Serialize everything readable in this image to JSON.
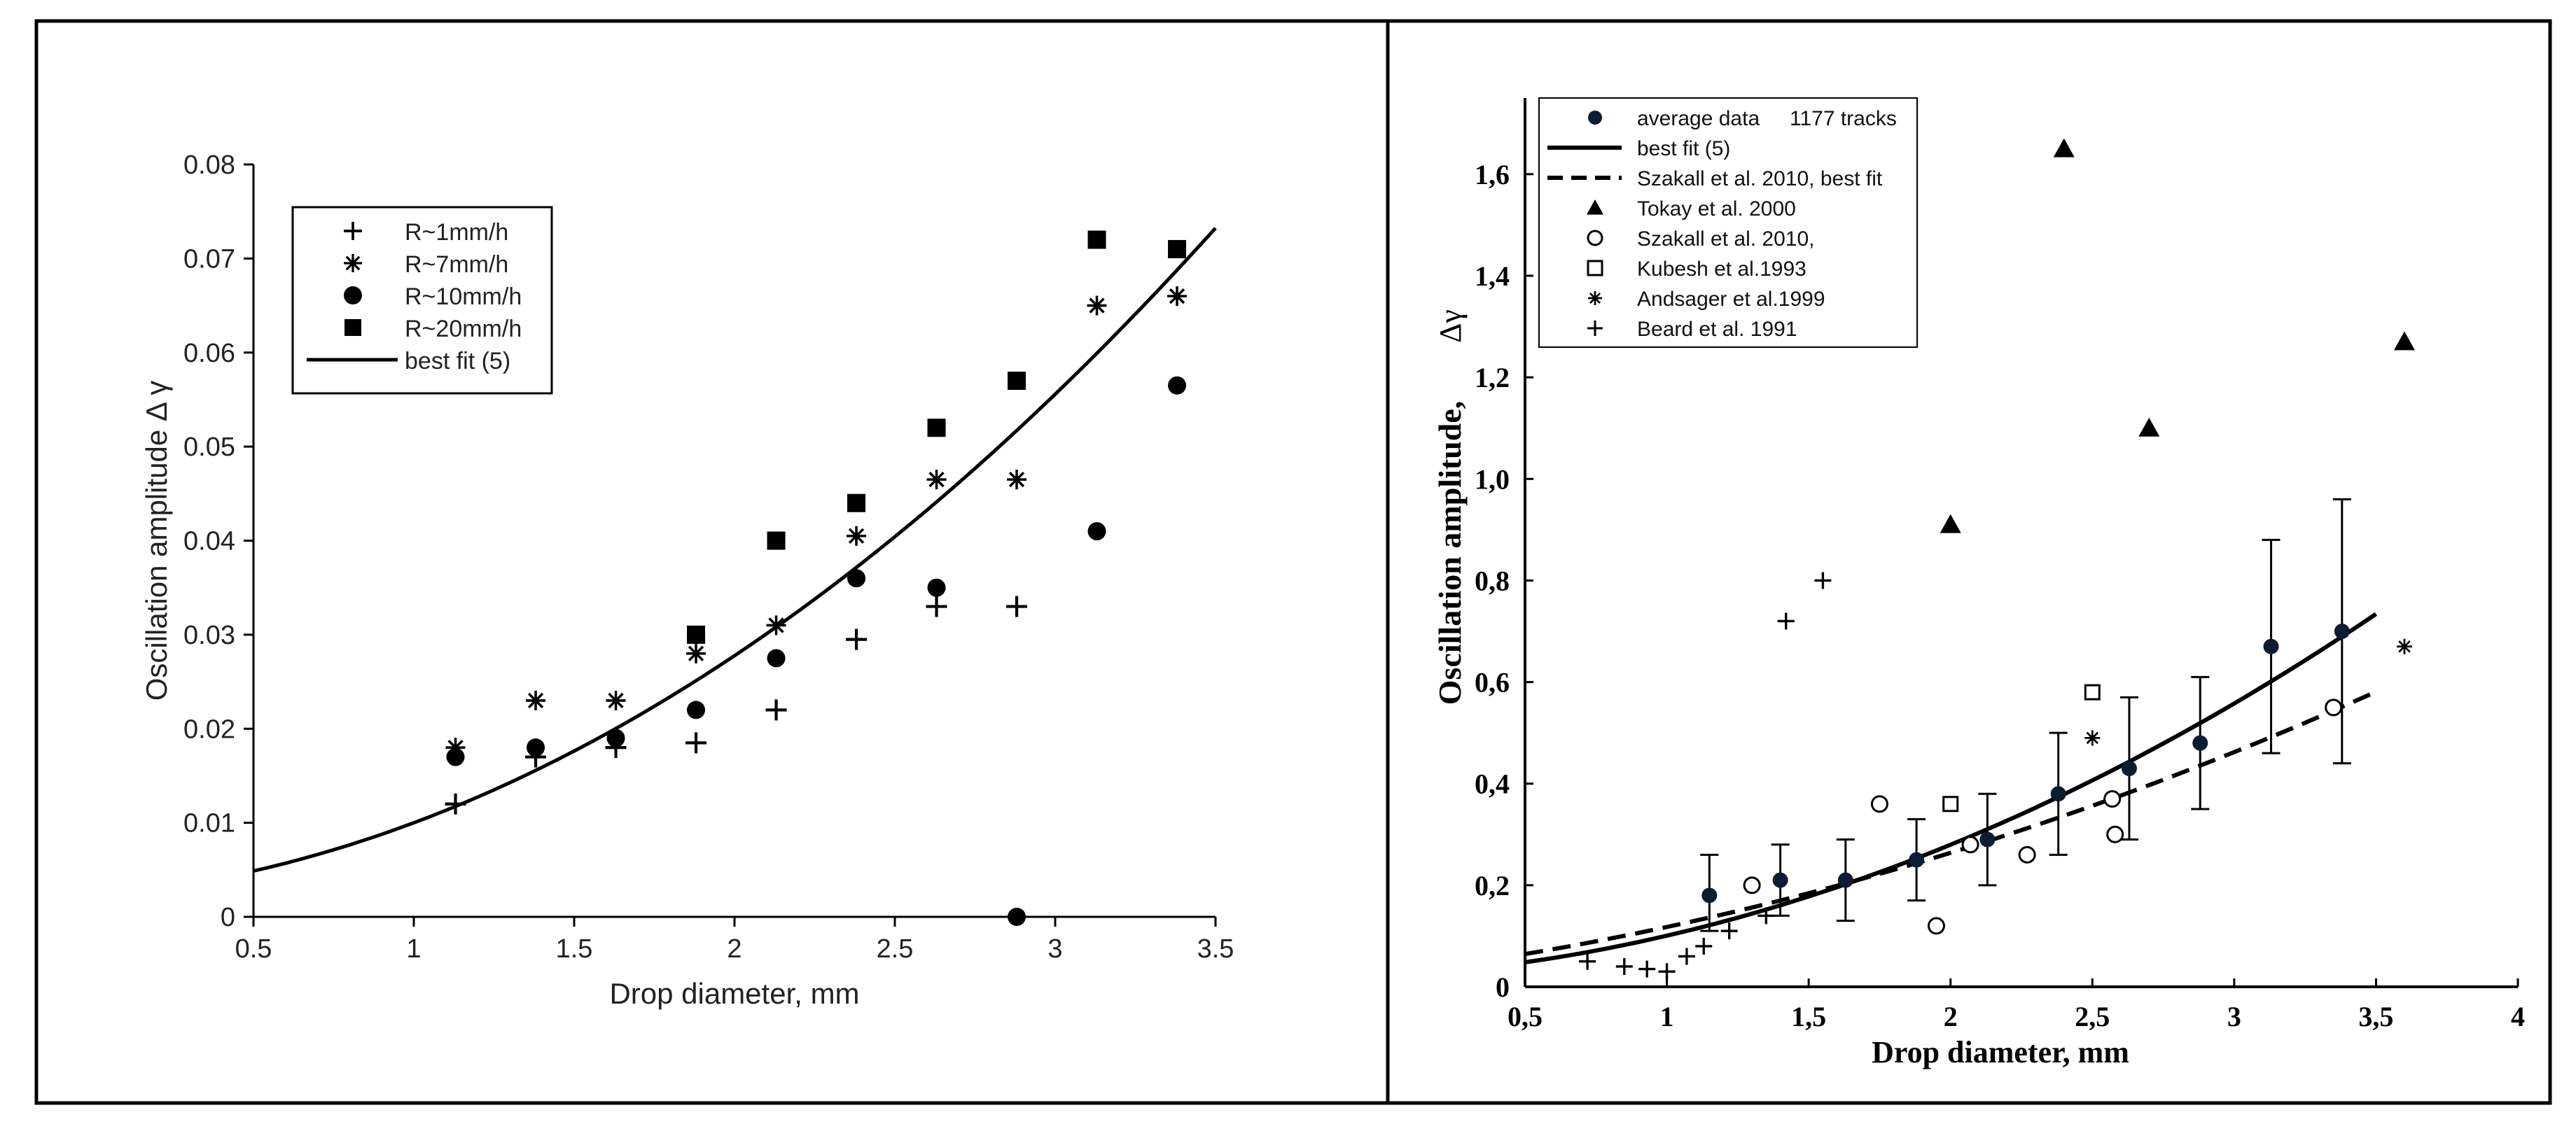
{
  "chart_data": [
    {
      "type": "scatter",
      "title": "",
      "xlabel": "Drop diameter, mm",
      "ylabel": "Oscillation amplitude Δ γ",
      "xlim": [
        0.5,
        3.5
      ],
      "ylim": [
        0,
        0.08
      ],
      "xticks": [
        0.5,
        1,
        1.5,
        2,
        2.5,
        3,
        3.5
      ],
      "xtick_labels": [
        "0.5",
        "1",
        "1.5",
        "2",
        "2.5",
        "3",
        "3.5"
      ],
      "yticks": [
        0,
        0.01,
        0.02,
        0.03,
        0.04,
        0.05,
        0.06,
        0.07,
        0.08
      ],
      "ytick_labels": [
        "0",
        "0.01",
        "0.02",
        "0.03",
        "0.04",
        "0.05",
        "0.06",
        "0.07",
        "0.08"
      ],
      "grid": false,
      "legend_position": "top-left",
      "series": [
        {
          "name": "R~1mm/h",
          "marker": "plus",
          "x": [
            1.13,
            1.38,
            1.63,
            1.88,
            2.13,
            2.38,
            2.63,
            2.88
          ],
          "y": [
            0.012,
            0.017,
            0.018,
            0.0185,
            0.022,
            0.0295,
            0.033,
            0.033
          ]
        },
        {
          "name": "R~7mm/h",
          "marker": "asterisk",
          "x": [
            1.13,
            1.38,
            1.63,
            1.88,
            2.13,
            2.38,
            2.63,
            2.88,
            3.13,
            3.38
          ],
          "y": [
            0.018,
            0.023,
            0.023,
            0.028,
            0.031,
            0.0405,
            0.0465,
            0.0465,
            0.065,
            0.066
          ]
        },
        {
          "name": "R~10mm/h",
          "marker": "circle",
          "x": [
            1.13,
            1.38,
            1.63,
            1.88,
            2.13,
            2.38,
            2.63,
            2.88,
            3.13,
            3.38
          ],
          "y": [
            0.017,
            0.018,
            0.019,
            0.022,
            0.0275,
            0.036,
            0.035,
            0.0,
            0.041,
            0.0565
          ]
        },
        {
          "name": "R~20mm/h",
          "marker": "square",
          "x": [
            1.88,
            2.13,
            2.38,
            2.63,
            2.88,
            3.13,
            3.38
          ],
          "y": [
            0.03,
            0.04,
            0.044,
            0.052,
            0.057,
            0.072,
            0.071
          ]
        },
        {
          "name": "best fit (5)",
          "line": "solid",
          "x": [
            0.5,
            1.0,
            1.5,
            2.0,
            2.5,
            3.0,
            3.5
          ],
          "y": [
            0.0045,
            0.0104,
            0.018,
            0.0278,
            0.0398,
            0.0555,
            0.0735
          ]
        }
      ]
    },
    {
      "type": "scatter",
      "title": "",
      "xlabel": "Drop diameter, mm",
      "ylabel": "Oscillation amplitude,",
      "ylabel_symbol": "Δγ",
      "xlim": [
        0.5,
        4
      ],
      "ylim": [
        0,
        1.75
      ],
      "xticks": [
        0.5,
        1,
        1.5,
        2,
        2.5,
        3,
        3.5,
        4
      ],
      "xtick_labels": [
        "0,5",
        "1",
        "1,5",
        "2",
        "2,5",
        "3",
        "3,5",
        "4"
      ],
      "yticks": [
        0,
        0.2,
        0.4,
        0.6,
        0.8,
        1.0,
        1.2,
        1.4,
        1.6
      ],
      "ytick_labels": [
        "0",
        "0,2",
        "0,4",
        "0,6",
        "0,8",
        "1,0",
        "1,2",
        "1,4",
        "1,6"
      ],
      "grid": false,
      "legend_position": "top-left",
      "legend_note": "1177 tracks",
      "series": [
        {
          "name": "average data",
          "marker": "dot",
          "x": [
            1.15,
            1.4,
            1.63,
            1.88,
            2.13,
            2.38,
            2.63,
            2.88,
            3.13,
            3.38
          ],
          "y": [
            0.18,
            0.21,
            0.21,
            0.25,
            0.29,
            0.38,
            0.43,
            0.48,
            0.67,
            0.7
          ],
          "err_low": [
            0.11,
            0.14,
            0.13,
            0.17,
            0.2,
            0.26,
            0.29,
            0.35,
            0.46,
            0.44
          ],
          "err_high": [
            0.26,
            0.28,
            0.29,
            0.33,
            0.38,
            0.5,
            0.57,
            0.61,
            0.88,
            0.96
          ]
        },
        {
          "name": "best fit (5)",
          "line": "solid",
          "x": [
            0.5,
            1.0,
            1.5,
            2.0,
            2.5,
            3.0,
            3.5
          ],
          "y": [
            0.045,
            0.105,
            0.18,
            0.28,
            0.4,
            0.56,
            0.735
          ]
        },
        {
          "name": "Szakall et al. 2010, best fit",
          "line": "dashed",
          "x": [
            0.5,
            1.0,
            1.5,
            2.0,
            2.5,
            3.0,
            3.5
          ],
          "y": [
            0.06,
            0.12,
            0.19,
            0.27,
            0.35,
            0.45,
            0.59
          ]
        },
        {
          "name": "Tokay et al. 2000",
          "marker": "triangle",
          "x": [
            2.0,
            2.4,
            2.7,
            3.6
          ],
          "y": [
            0.91,
            1.65,
            1.1,
            1.27
          ]
        },
        {
          "name": "Szakall et al. 2010,",
          "marker": "open-circle",
          "x": [
            1.3,
            1.75,
            1.95,
            2.07,
            2.27,
            2.57,
            2.58,
            3.35
          ],
          "y": [
            0.2,
            0.36,
            0.12,
            0.28,
            0.26,
            0.37,
            0.3,
            0.55
          ]
        },
        {
          "name": "Kubesh et al.1993",
          "marker": "open-square",
          "x": [
            2.0,
            2.5
          ],
          "y": [
            0.36,
            0.58
          ]
        },
        {
          "name": "Andsager et al.1999",
          "marker": "asterisk",
          "x": [
            2.5,
            3.6
          ],
          "y": [
            0.49,
            0.67
          ]
        },
        {
          "name": "Beard et al. 1991",
          "marker": "plus",
          "x": [
            0.72,
            0.85,
            0.93,
            1.0,
            1.07,
            1.13,
            1.22,
            1.35,
            1.42,
            1.55
          ],
          "y": [
            0.05,
            0.04,
            0.035,
            0.03,
            0.06,
            0.08,
            0.11,
            0.14,
            0.72,
            0.8
          ]
        }
      ]
    }
  ]
}
